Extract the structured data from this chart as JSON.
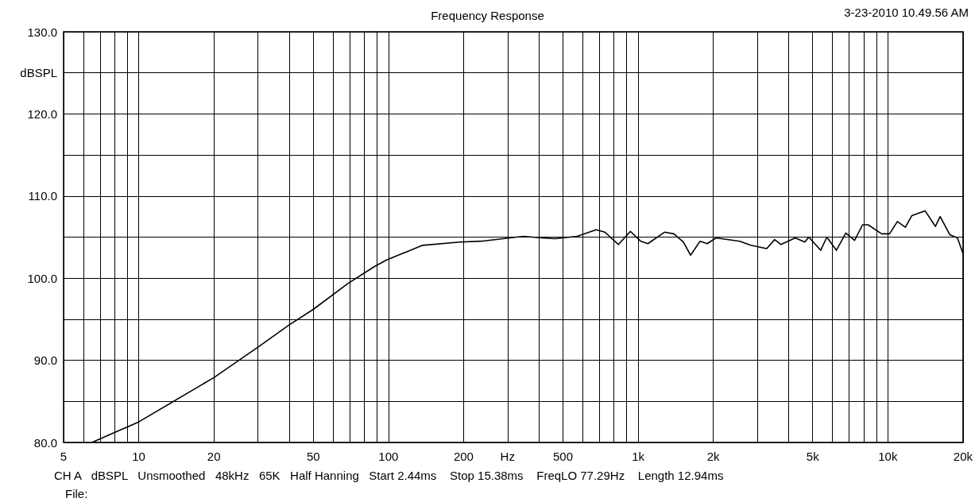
{
  "chart_data": {
    "type": "line",
    "title": "Frequency Response",
    "ylabel": "dBSPL",
    "annotations": [
      "3-23-2010 10.49.56 AM",
      "CH A   dBSPL   Unsmoothed   48kHz   65K   Half Hanning   Start 2.44ms    Stop 15.38ms    FreqLO 77.29Hz    Length 12.94ms",
      "File:"
    ],
    "series": [
      {
        "color": "#000000",
        "x": [
          6.5,
          8,
          10,
          20,
          30,
          40,
          50,
          68.5,
          87.7,
          98,
          137,
          193,
          235,
          347,
          410,
          465,
          570,
          679,
          736,
          834,
          931,
          1024,
          1094,
          1275,
          1390,
          1517,
          1622,
          1771,
          1891,
          2051,
          2553,
          2826,
          3272,
          3522,
          3733,
          4259,
          4649,
          4822,
          5382,
          5700,
          6220,
          6790,
          7360,
          7920,
          8340,
          9440,
          10160,
          10920,
          11750,
          12470,
          14100,
          15500,
          16200,
          17700,
          19000,
          20000
        ],
        "values": [
          80.0,
          81.2,
          82.5,
          87.9,
          91.6,
          94.3,
          96.2,
          99.3,
          101.4,
          102.2,
          104.0,
          104.4,
          104.5,
          105.1,
          104.9,
          104.8,
          105.1,
          105.9,
          105.6,
          104.1,
          105.7,
          104.5,
          104.2,
          105.6,
          105.4,
          104.4,
          102.8,
          104.5,
          104.2,
          104.9,
          104.5,
          104.0,
          103.6,
          104.7,
          104.1,
          104.9,
          104.4,
          105.0,
          103.4,
          105.0,
          103.4,
          105.5,
          104.6,
          106.5,
          106.5,
          105.4,
          105.4,
          106.9,
          106.2,
          107.6,
          108.2,
          106.3,
          107.5,
          105.3,
          104.9,
          103.0
        ]
      }
    ],
    "log": "x",
    "grid": true,
    "marker": "none",
    "line_style": "solid",
    "xlim": [
      5,
      20000
    ],
    "xticks": [
      5,
      {
        "value": 6,
        "label": null
      },
      {
        "value": 7,
        "label": null
      },
      {
        "value": 8,
        "label": null
      },
      {
        "value": 9,
        "label": null
      },
      10,
      20,
      {
        "value": 30,
        "label": null
      },
      {
        "value": 40,
        "label": null
      },
      50,
      {
        "value": 60,
        "label": null
      },
      {
        "value": 70,
        "label": null
      },
      {
        "value": 80,
        "label": null
      },
      {
        "value": 90,
        "label": null
      },
      100,
      200,
      {
        "value": 300,
        "label": "Hz"
      },
      {
        "value": 400,
        "label": null
      },
      500,
      {
        "value": 600,
        "label": null
      },
      {
        "value": 700,
        "label": null
      },
      {
        "value": 800,
        "label": null
      },
      {
        "value": 900,
        "label": null
      },
      {
        "value": 1000,
        "label": "1k"
      },
      {
        "value": 2000,
        "label": "2k"
      },
      {
        "value": 3000,
        "label": null
      },
      {
        "value": 4000,
        "label": null
      },
      {
        "value": 5000,
        "label": "5k"
      },
      {
        "value": 6000,
        "label": null
      },
      {
        "value": 7000,
        "label": null
      },
      {
        "value": 8000,
        "label": null
      },
      {
        "value": 9000,
        "label": null
      },
      {
        "value": 10000,
        "label": "10k"
      },
      {
        "value": 20000,
        "label": "20k"
      }
    ],
    "ylim": [
      80,
      130
    ],
    "yticks": [
      {
        "value": 80,
        "label": "80.0"
      },
      {
        "value": 85,
        "label": null
      },
      {
        "value": 90,
        "label": "90.0"
      },
      {
        "value": 95,
        "label": null
      },
      {
        "value": 100,
        "label": "100.0"
      },
      {
        "value": 105,
        "label": null
      },
      {
        "value": 110,
        "label": "110.0"
      },
      {
        "value": 115,
        "label": null
      },
      {
        "value": 120,
        "label": "120.0"
      },
      {
        "value": 125,
        "label": null
      },
      {
        "value": 130,
        "label": "130.0"
      }
    ]
  }
}
